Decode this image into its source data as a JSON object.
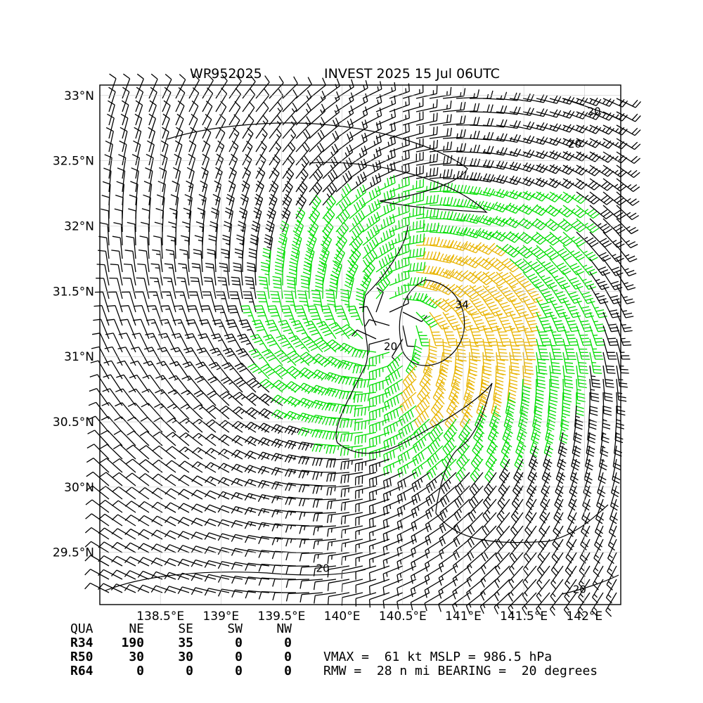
{
  "chart_data": {
    "type": "wind-barb-map",
    "title_left": "WP952025",
    "title_right": "INVEST 2025 15 Jul 06UTC",
    "x_ticks": [
      "138.5°E",
      "139°E",
      "139.5°E",
      "140°E",
      "140.5°E",
      "141°E",
      "141.5°E",
      "142°E"
    ],
    "x_tick_values": [
      138.5,
      139.0,
      139.5,
      140.0,
      140.5,
      141.0,
      141.5,
      142.0
    ],
    "y_ticks": [
      "33°N",
      "32.5°N",
      "32°N",
      "31.5°N",
      "31°N",
      "30.5°N",
      "30°N",
      "29.5°N"
    ],
    "y_tick_values": [
      33.0,
      32.5,
      32.0,
      31.5,
      31.0,
      30.5,
      30.0,
      29.5
    ],
    "xlim": [
      138.0,
      142.3
    ],
    "ylim": [
      29.1,
      33.08
    ],
    "grid": true,
    "center": {
      "lon": 140.4,
      "lat": 31.25
    },
    "contour_labels": [
      {
        "text": "20",
        "lon": 142.08,
        "lat": 32.85
      },
      {
        "text": "20",
        "lon": 141.92,
        "lat": 32.6
      },
      {
        "text": "34",
        "lon": 140.99,
        "lat": 31.37
      },
      {
        "text": "20",
        "lon": 140.4,
        "lat": 31.05
      },
      {
        "text": "20",
        "lon": 139.84,
        "lat": 29.35
      },
      {
        "text": "20",
        "lon": 141.96,
        "lat": 29.19
      }
    ],
    "barb_colors": {
      "below_34kt": "#000000",
      "34_to_50kt": "#00dd00",
      "50_to_64kt": "#e8b400",
      "above_64kt": "#ff5500"
    },
    "wind_radii_table": {
      "header": [
        "QUA",
        "NE",
        "SE",
        "SW",
        "NW"
      ],
      "rows": [
        {
          "label": "R34",
          "values": [
            "190",
            "35",
            "0",
            "0"
          ]
        },
        {
          "label": "R50",
          "values": [
            "30",
            "30",
            "0",
            "0"
          ]
        },
        {
          "label": "R64",
          "values": [
            "0",
            "0",
            "0",
            "0"
          ]
        }
      ]
    },
    "stats_line1": "VMAX =  61 kt MSLP = 986.5 hPa",
    "stats_line2": "RMW =  28 n mi BEARING =  20 degrees",
    "vmax_kt": 61,
    "mslp_hpa": 986.5,
    "rmw_nmi": 28,
    "bearing_deg": 20
  }
}
